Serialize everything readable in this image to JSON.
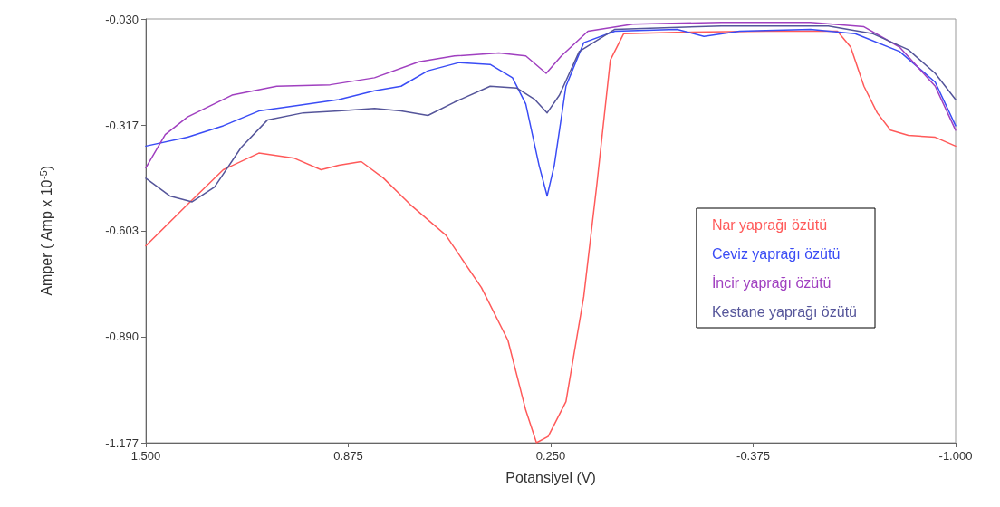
{
  "chart_data": {
    "type": "line",
    "xlabel": "Potansiyel (V)",
    "ylabel": "Amper ( Amp x 10$^{-5}$)",
    "xlim": [
      1.5,
      -1.0
    ],
    "xticks": [
      {
        "value": 1.5,
        "label": "1.500"
      },
      {
        "value": 0.875,
        "label": "0.875"
      },
      {
        "value": 0.25,
        "label": "0.250"
      },
      {
        "value": -0.375,
        "label": "-0.375"
      },
      {
        "value": -1.0,
        "label": "-1.000"
      }
    ],
    "ylim": [
      -1.177,
      -0.03
    ],
    "yticks": [
      {
        "value": -1.177,
        "label": "-1.177"
      },
      {
        "value": -0.89,
        "label": "-0.890"
      },
      {
        "value": -0.603,
        "label": "-0.603"
      },
      {
        "value": -0.317,
        "label": "-0.317"
      },
      {
        "value": -0.03,
        "label": "-0.030"
      }
    ],
    "grid": false,
    "legend": "right",
    "marker": "none",
    "line_style": "solid",
    "series": [
      {
        "name": "Nar yaprağı özütü",
        "color": "#ff5a5a",
        "x": [
          1.5,
          1.371,
          1.261,
          1.151,
          1.041,
          0.959,
          0.904,
          0.835,
          0.766,
          0.684,
          0.574,
          0.464,
          0.382,
          0.327,
          0.294,
          0.258,
          0.203,
          0.148,
          0.107,
          0.066,
          0.025,
          -0.14,
          -0.415,
          -0.635,
          -0.676,
          -0.717,
          -0.758,
          -0.799,
          -0.854,
          -0.937,
          -1.0
        ],
        "values": [
          -0.644,
          -0.532,
          -0.438,
          -0.393,
          -0.407,
          -0.438,
          -0.426,
          -0.416,
          -0.461,
          -0.532,
          -0.615,
          -0.757,
          -0.9,
          -1.089,
          -1.177,
          -1.16,
          -1.066,
          -0.781,
          -0.473,
          -0.141,
          -0.07,
          -0.066,
          -0.063,
          -0.063,
          -0.106,
          -0.212,
          -0.284,
          -0.331,
          -0.345,
          -0.35,
          -0.374
        ]
      },
      {
        "name": "Ceviz yaprağı özütü",
        "color": "#3a4cf5",
        "x": [
          1.5,
          1.371,
          1.261,
          1.151,
          1.041,
          0.904,
          0.794,
          0.712,
          0.629,
          0.533,
          0.437,
          0.368,
          0.327,
          0.286,
          0.261,
          0.239,
          0.203,
          0.148,
          0.052,
          -0.14,
          -0.223,
          -0.333,
          -0.552,
          -0.69,
          -0.827,
          -0.937,
          -1.0
        ],
        "values": [
          -0.374,
          -0.35,
          -0.319,
          -0.279,
          -0.265,
          -0.248,
          -0.224,
          -0.212,
          -0.17,
          -0.148,
          -0.153,
          -0.189,
          -0.26,
          -0.426,
          -0.509,
          -0.426,
          -0.212,
          -0.094,
          -0.063,
          -0.058,
          -0.077,
          -0.063,
          -0.058,
          -0.07,
          -0.118,
          -0.201,
          -0.319
        ]
      },
      {
        "name": "İncir yaprağı özütü",
        "color": "#a040c0",
        "x": [
          1.5,
          1.44,
          1.371,
          1.234,
          1.096,
          0.931,
          0.794,
          0.657,
          0.547,
          0.41,
          0.327,
          0.264,
          0.217,
          0.135,
          -0.003,
          -0.277,
          -0.552,
          -0.717,
          -0.827,
          -0.937,
          -1.0
        ],
        "values": [
          -0.433,
          -0.343,
          -0.295,
          -0.236,
          -0.212,
          -0.208,
          -0.189,
          -0.146,
          -0.13,
          -0.122,
          -0.13,
          -0.177,
          -0.13,
          -0.063,
          -0.044,
          -0.039,
          -0.039,
          -0.051,
          -0.106,
          -0.212,
          -0.331
        ]
      },
      {
        "name": "Kestane yaprağı özütü",
        "color": "#55559a",
        "x": [
          1.5,
          1.426,
          1.357,
          1.288,
          1.206,
          1.124,
          1.014,
          0.904,
          0.794,
          0.712,
          0.629,
          0.547,
          0.437,
          0.354,
          0.299,
          0.261,
          0.223,
          0.162,
          0.052,
          -0.277,
          -0.607,
          -0.745,
          -0.854,
          -0.937,
          -1.0
        ],
        "values": [
          -0.461,
          -0.509,
          -0.525,
          -0.485,
          -0.378,
          -0.303,
          -0.284,
          -0.279,
          -0.272,
          -0.279,
          -0.291,
          -0.255,
          -0.212,
          -0.217,
          -0.248,
          -0.284,
          -0.236,
          -0.118,
          -0.058,
          -0.049,
          -0.049,
          -0.07,
          -0.113,
          -0.177,
          -0.248
        ]
      }
    ]
  }
}
